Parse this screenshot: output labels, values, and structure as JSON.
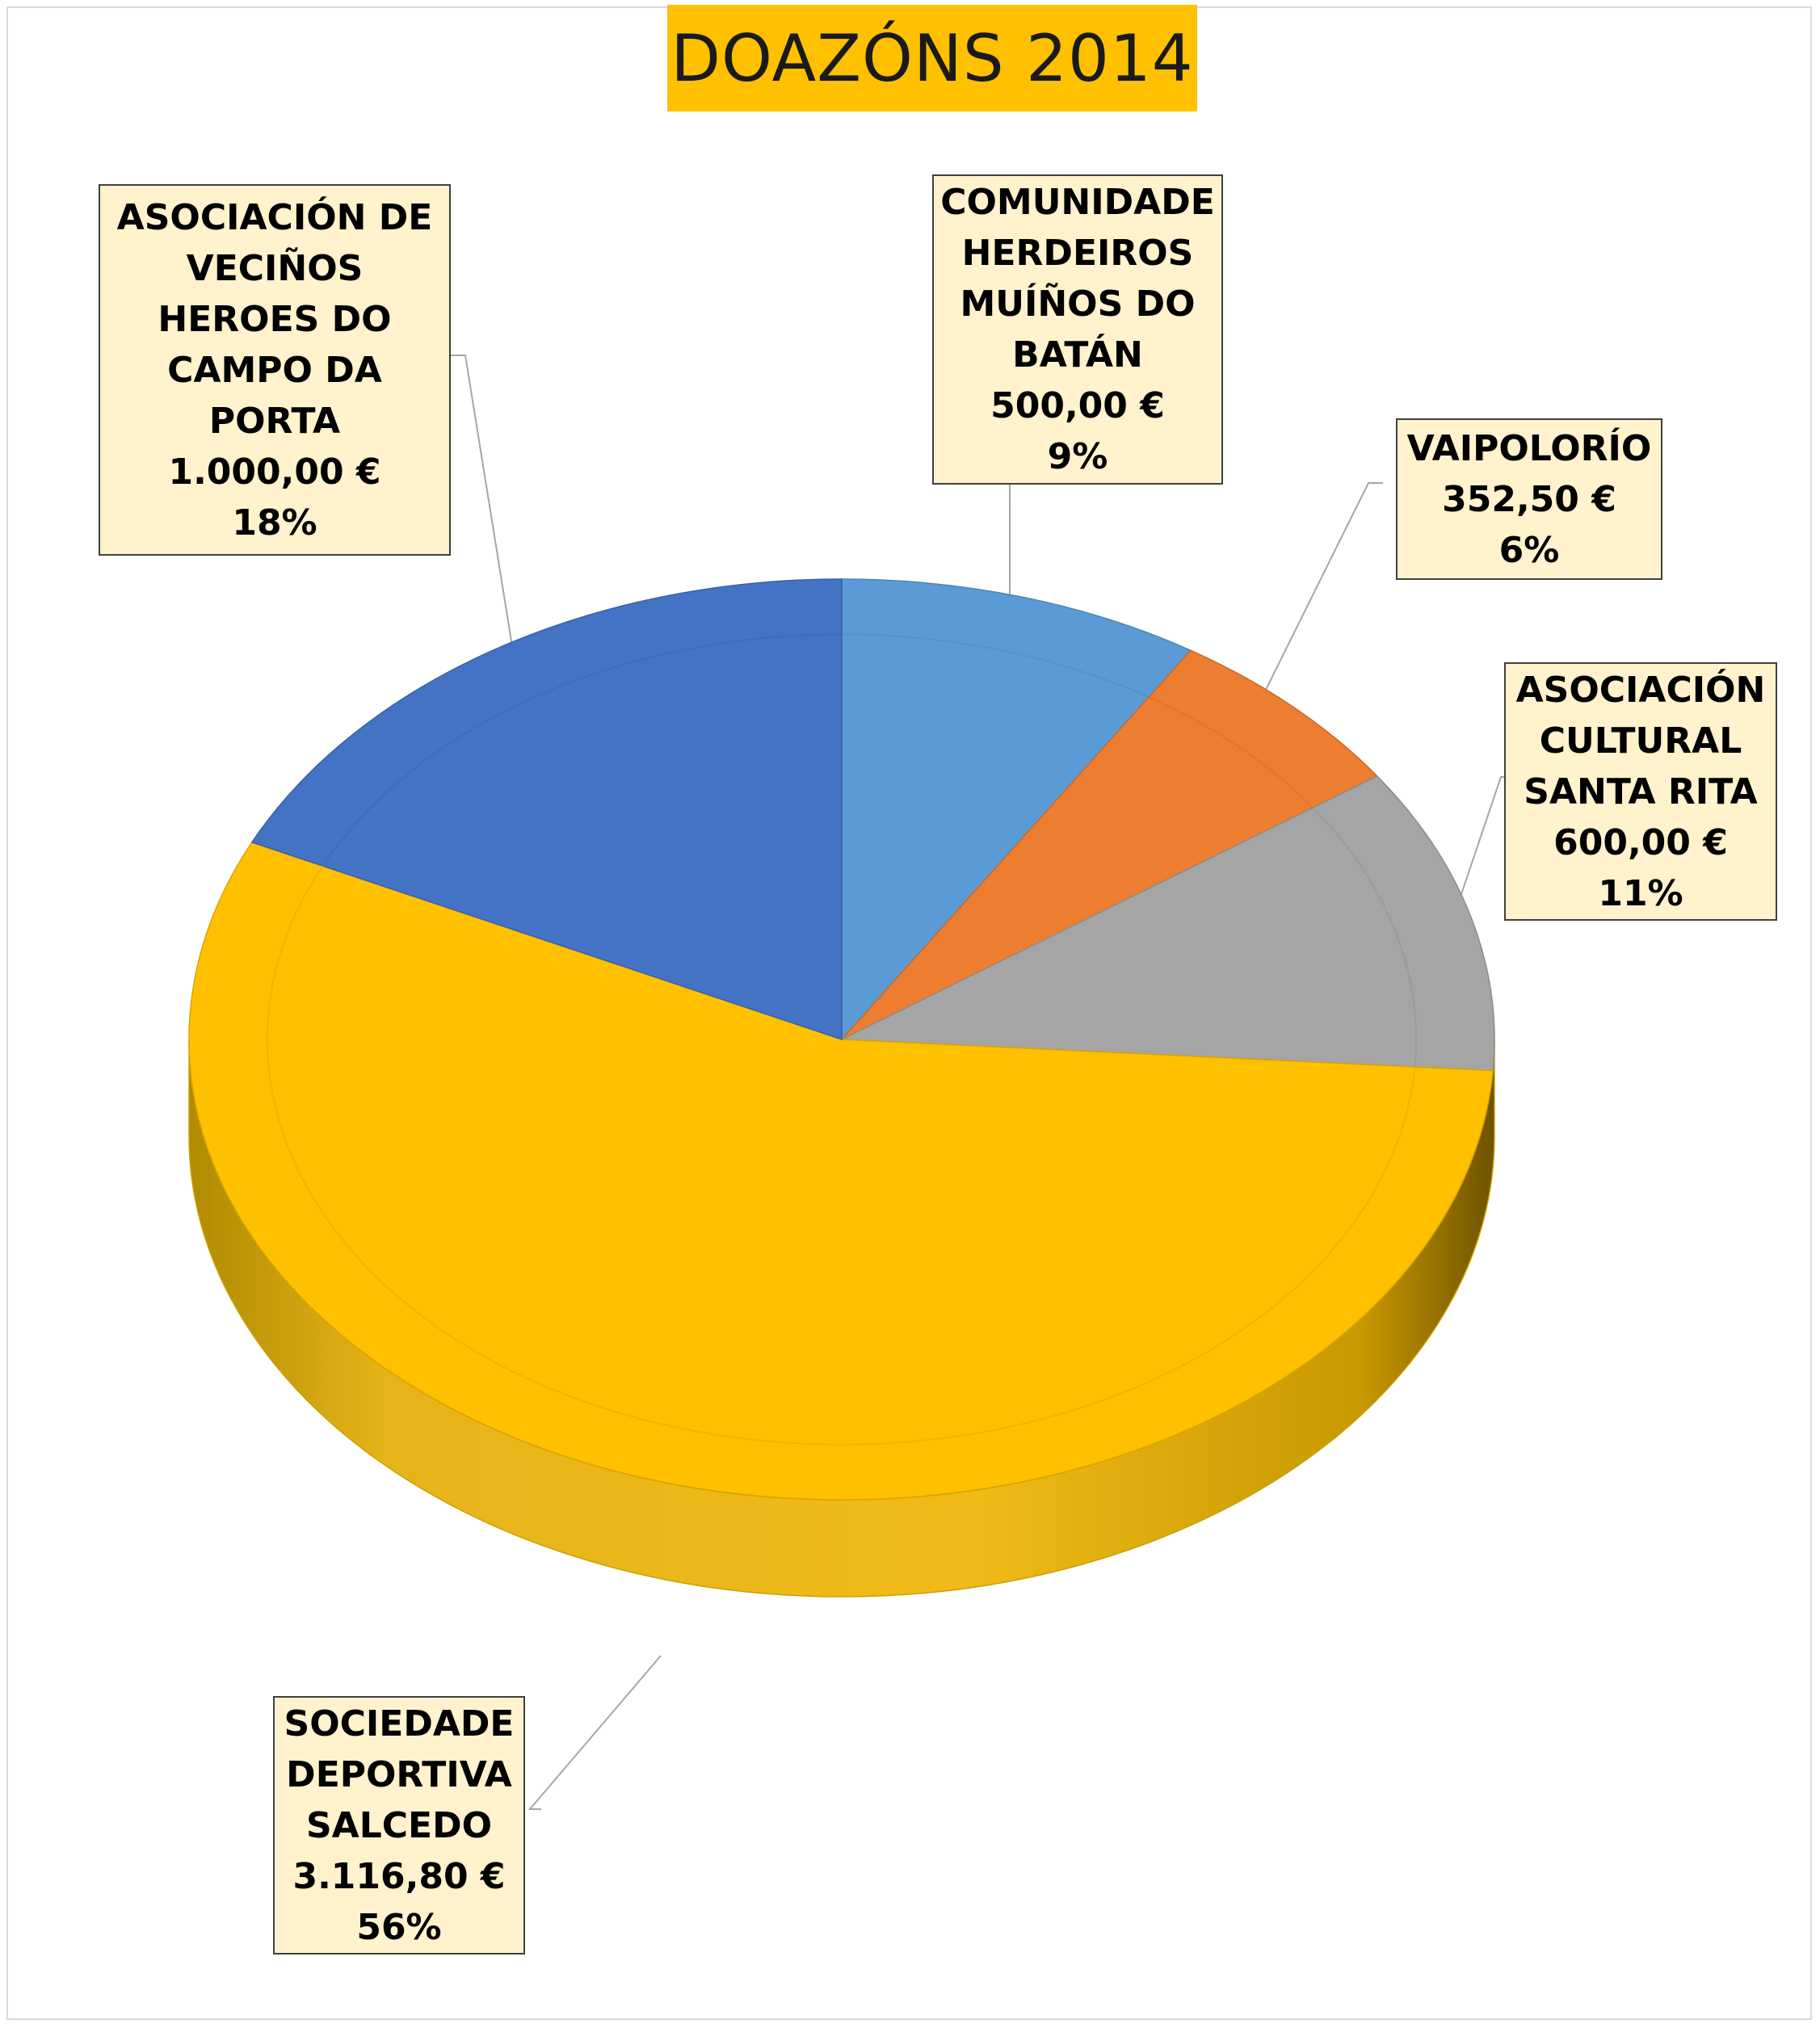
{
  "chart_data": {
    "type": "pie",
    "variant": "3d",
    "title": "DOAZÓNS 2014",
    "legend": "none",
    "slices": [
      {
        "name": "COMUNIDADE HERDEIROS MUÍÑOS DO BATÁN",
        "value_label": "500,00 €",
        "value": 500.0,
        "percent_label": "9%",
        "percent": 9,
        "color": "#5b9bd5"
      },
      {
        "name": "VAIPOLORÍO",
        "value_label": "352,50 €",
        "value": 352.5,
        "percent_label": "6%",
        "percent": 6,
        "color": "#ed7d31"
      },
      {
        "name": "ASOCIACIÓN CULTURAL SANTA RITA",
        "value_label": "600,00 €",
        "value": 600.0,
        "percent_label": "11%",
        "percent": 11,
        "color": "#a5a5a5"
      },
      {
        "name": "SOCIEDADE DEPORTIVA SALCEDO",
        "value_label": "3.116,80 €",
        "value": 3116.8,
        "percent_label": "56%",
        "percent": 56,
        "color": "#ffc000"
      },
      {
        "name": "ASOCIACIÓN DE VECIÑOS HEROES DO CAMPO DA PORTA",
        "value_label": "1.000,00 €",
        "value": 1000.0,
        "percent_label": "18%",
        "percent": 18,
        "color": "#4472c4"
      }
    ]
  }
}
